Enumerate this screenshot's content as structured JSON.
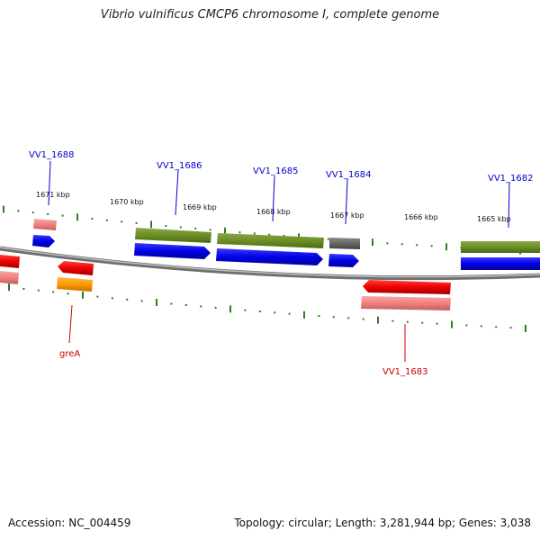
{
  "title": "Vibrio vulnificus CMCP6 chromosome I, complete genome",
  "footer": {
    "accession": "Accession: NC_004459",
    "summary": "Topology: circular; Length: 3,281,944 bp; Genes: 3,038"
  },
  "colors": {
    "backbone": "#8c8c8c",
    "tick": "#2e7d1e",
    "cds_forward": "#0000ee",
    "cds_reverse": "#ee0000",
    "gene_forward": "#6b8e23",
    "gene_reverse": "#f08080",
    "pseudo": "#666666",
    "rna": "#ff9900",
    "label_forward": "#0000cc",
    "label_reverse": "#cc0000"
  },
  "kbp_ticks": [
    "1671 kbp",
    "1670 kbp",
    "1669 kbp",
    "1668 kbp",
    "1667 kbp",
    "1666 kbp",
    "1665 kbp"
  ],
  "gene_labels": {
    "forward": [
      "VV1_1688",
      "VV1_1686",
      "VV1_1685",
      "VV1_1684",
      "VV1_1682"
    ],
    "reverse": [
      "greA",
      "VV1_1683"
    ]
  }
}
